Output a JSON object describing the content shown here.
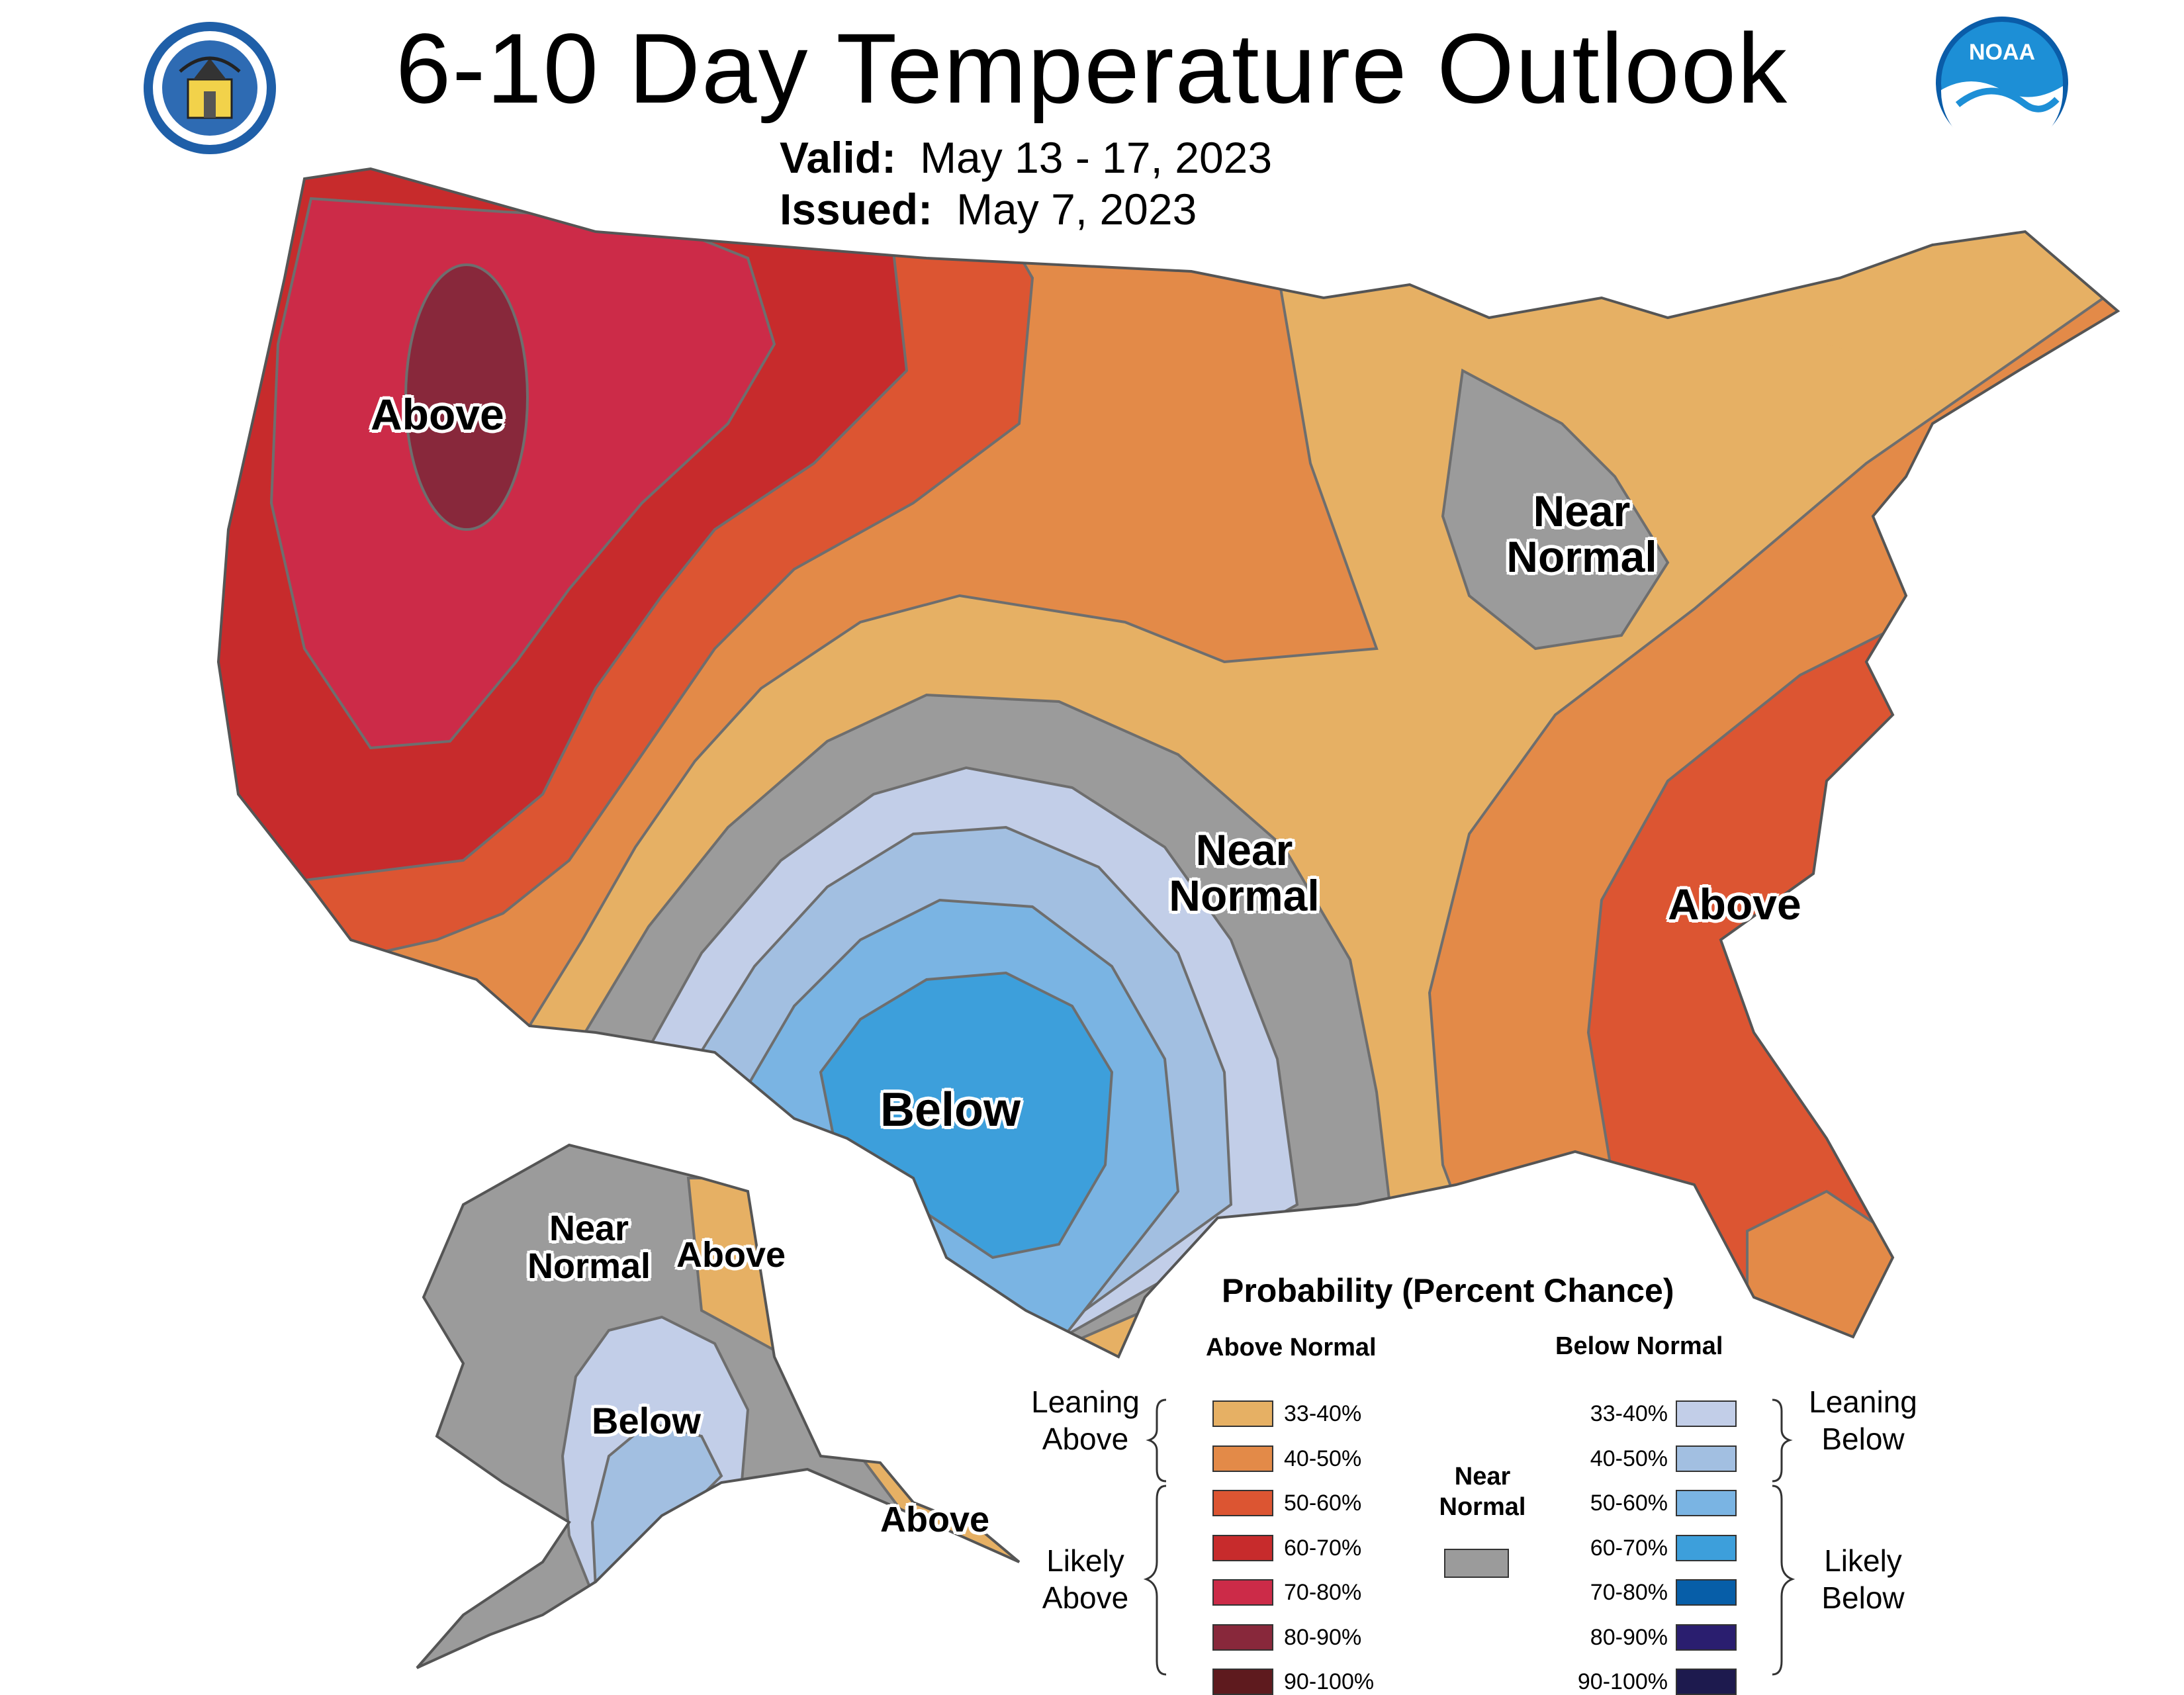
{
  "header": {
    "title": "6-10 Day Temperature Outlook",
    "valid_label": "Valid:",
    "valid_value": "May 13 - 17, 2023",
    "issued_label": "Issued:",
    "issued_value": "May 7, 2023"
  },
  "logos": {
    "commerce_seal": "seal-icon",
    "noaa_logo": "noaa-logo",
    "noaa_text": "NOAA"
  },
  "regions": {
    "west_above": "Above",
    "great_lakes_near_normal": "Near Normal",
    "plains_near_normal": "Near Normal",
    "southeast_above": "Above",
    "texas_below": "Below",
    "alaska_near_normal": "Near Normal",
    "alaska_east_above": "Above",
    "alaska_below": "Below",
    "alaska_panhandle_above": "Above"
  },
  "legend": {
    "title": "Probability (Percent Chance)",
    "above_heading": "Above Normal",
    "below_heading": "Below Normal",
    "near_normal_heading": "Near Normal",
    "near_normal_color": "#9b9b9b",
    "leaning_above": "Leaning Above",
    "likely_above": "Likely Above",
    "leaning_below": "Leaning Below",
    "likely_below": "Likely Below",
    "above_categories": [
      {
        "range": "33-40%",
        "color": "#e6b064"
      },
      {
        "range": "40-50%",
        "color": "#e38a48"
      },
      {
        "range": "50-60%",
        "color": "#dc5532"
      },
      {
        "range": "60-70%",
        "color": "#c72b2c"
      },
      {
        "range": "70-80%",
        "color": "#cc2b48"
      },
      {
        "range": "80-90%",
        "color": "#88283b"
      },
      {
        "range": "90-100%",
        "color": "#5e1a1e"
      }
    ],
    "below_categories": [
      {
        "range": "33-40%",
        "color": "#c2cee8"
      },
      {
        "range": "40-50%",
        "color": "#a2bfe1"
      },
      {
        "range": "50-60%",
        "color": "#7ab4e3"
      },
      {
        "range": "60-70%",
        "color": "#3d9fdb"
      },
      {
        "range": "70-80%",
        "color": "#075ea8"
      },
      {
        "range": "80-90%",
        "color": "#2a1e6f"
      },
      {
        "range": "90-100%",
        "color": "#1d1a4e"
      }
    ]
  }
}
